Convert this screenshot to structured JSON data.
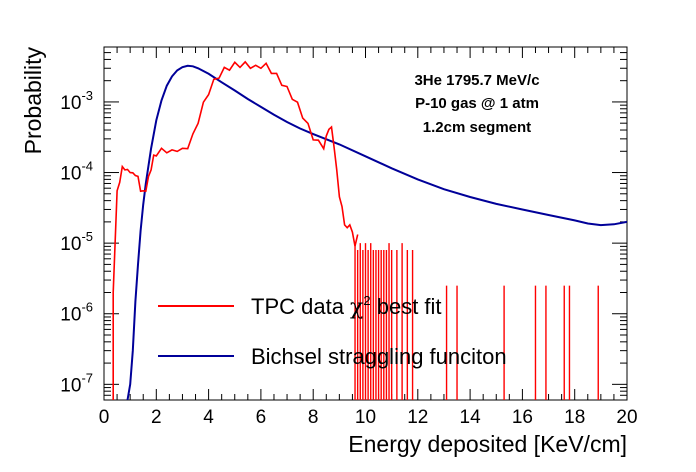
{
  "chart_data": {
    "type": "line",
    "title": "",
    "xlabel": "Energy deposited [KeV/cm]",
    "ylabel": "Probability",
    "xlim": [
      0,
      20
    ],
    "ylim": [
      6e-08,
      0.006
    ],
    "yscale": "log",
    "grid": false,
    "legend_position": "bottom-left",
    "x_ticks": [
      "0",
      "2",
      "4",
      "6",
      "8",
      "10",
      "12",
      "14",
      "16",
      "18",
      "20"
    ],
    "y_ticks": [
      {
        "base": "10",
        "exp": "-7",
        "value": 1e-07
      },
      {
        "base": "10",
        "exp": "-6",
        "value": 1e-06
      },
      {
        "base": "10",
        "exp": "-5",
        "value": 1e-05
      },
      {
        "base": "10",
        "exp": "-4",
        "value": 0.0001
      },
      {
        "base": "10",
        "exp": "-3",
        "value": 0.001
      }
    ],
    "annotation": [
      "3He 1795.7 MeV/c",
      "P-10 gas @ 1 atm",
      "1.2cm segment"
    ],
    "series": [
      {
        "name_main": "TPC data ",
        "name_chi": "χ",
        "name_sup": "2",
        "name_rest": " best fit",
        "color": "#ff0000",
        "x": [
          0.35,
          0.45,
          0.5,
          0.6,
          0.7,
          0.8,
          0.9,
          1.0,
          1.1,
          1.2,
          1.3,
          1.4,
          1.5,
          1.6,
          1.7,
          1.8,
          1.9,
          2.0,
          2.2,
          2.4,
          2.6,
          2.8,
          3.0,
          3.2,
          3.4,
          3.6,
          3.8,
          4.0,
          4.2,
          4.4,
          4.6,
          4.8,
          5.0,
          5.2,
          5.4,
          5.6,
          5.8,
          6.0,
          6.2,
          6.4,
          6.6,
          6.8,
          7.0,
          7.2,
          7.4,
          7.6,
          7.8,
          8.0,
          8.2,
          8.4,
          8.5,
          8.6,
          8.7,
          8.8,
          8.9,
          9.0,
          9.1,
          9.2,
          9.3,
          9.4,
          9.5,
          9.6,
          9.7
        ],
        "y": [
          2e-06,
          2e-05,
          5e-05,
          8e-05,
          0.00011,
          0.00012,
          0.0001,
          0.00011,
          9e-05,
          0.0001,
          8e-05,
          6e-05,
          5e-05,
          6e-05,
          8e-05,
          0.00012,
          0.00016,
          0.00019,
          0.0002,
          0.00021,
          0.00019,
          0.00022,
          0.0002,
          0.00024,
          0.00032,
          0.00055,
          0.0009,
          0.0014,
          0.0019,
          0.0024,
          0.0028,
          0.0031,
          0.0033,
          0.0034,
          0.00335,
          0.0033,
          0.003,
          0.0033,
          0.0032,
          0.0028,
          0.0023,
          0.0019,
          0.0015,
          0.0012,
          0.0009,
          0.00065,
          0.00045,
          0.00032,
          0.00026,
          0.00024,
          0.0003,
          0.00045,
          0.0004,
          0.00025,
          0.0001,
          5e-05,
          3e-05,
          2e-05,
          1.5e-05,
          2e-05,
          1.3e-05,
          1e-05,
          1.2e-05
        ],
        "spikes_x": [
          9.6,
          9.7,
          9.8,
          9.9,
          10.0,
          10.1,
          10.2,
          10.3,
          10.4,
          10.5,
          10.6,
          10.7,
          10.8,
          10.9,
          11.0,
          11.2,
          11.4,
          11.6,
          11.8,
          13.1,
          13.5,
          15.3,
          16.5,
          16.9,
          17.6,
          17.8,
          18.9
        ],
        "spikes_y": [
          1e-05,
          8e-06,
          1e-05,
          8e-06,
          1e-05,
          8e-06,
          1e-05,
          8e-06,
          8e-06,
          8e-06,
          8e-06,
          8e-06,
          8e-06,
          1e-05,
          8e-06,
          8e-06,
          1e-05,
          8e-06,
          8e-06,
          2.5e-06,
          2.5e-06,
          2.5e-06,
          2.5e-06,
          2.5e-06,
          2.5e-06,
          2.5e-06,
          2.5e-06
        ]
      },
      {
        "name_main": "Bichsel straggling funciton",
        "color": "#000099",
        "x": [
          0.9,
          1.0,
          1.1,
          1.2,
          1.3,
          1.4,
          1.5,
          1.6,
          1.8,
          2.0,
          2.2,
          2.4,
          2.6,
          2.8,
          3.0,
          3.2,
          3.4,
          3.6,
          4.0,
          4.5,
          5.0,
          5.5,
          6.0,
          6.5,
          7.0,
          7.5,
          8.0,
          9.0,
          10.0,
          11.0,
          12.0,
          13.0,
          14.0,
          15.0,
          16.0,
          17.0,
          18.0,
          18.5,
          19.0,
          19.5,
          20.0
        ],
        "y": [
          6e-08,
          1e-07,
          3e-07,
          1.5e-06,
          5e-06,
          1.5e-05,
          3.5e-05,
          7e-05,
          0.00022,
          0.00055,
          0.00105,
          0.0017,
          0.0023,
          0.0028,
          0.0031,
          0.00325,
          0.0032,
          0.003,
          0.0025,
          0.0019,
          0.00145,
          0.0011,
          0.00085,
          0.00066,
          0.00052,
          0.00042,
          0.00035,
          0.00025,
          0.00017,
          0.000115,
          8e-05,
          5.8e-05,
          4.5e-05,
          3.6e-05,
          3e-05,
          2.5e-05,
          2.1e-05,
          1.9e-05,
          1.8e-05,
          1.85e-05,
          2e-05
        ]
      }
    ]
  }
}
